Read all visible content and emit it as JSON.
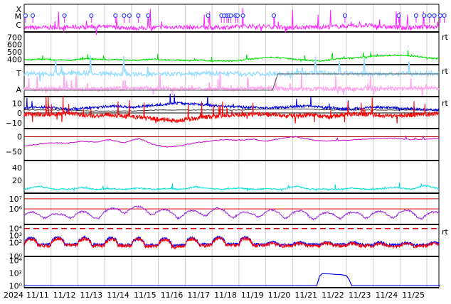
{
  "chart_data": [
    {
      "type": "line",
      "panel": "xray-flare-class",
      "y_tick_labels": [
        "X",
        "M",
        "C"
      ],
      "series": [
        {
          "color": "#ff22ff",
          "values": [
            2.8,
            2.9,
            3.1,
            2.7,
            3.0,
            2.8,
            3.2,
            2.9,
            3.0,
            3.4,
            2.8,
            3.1
          ]
        }
      ],
      "flare_marker_color": "#3344ff",
      "flare_marker_x": [
        11.05,
        11.32,
        12.5,
        13.5,
        14.4,
        14.72,
        14.92,
        15.25,
        15.62,
        17.85,
        18.35,
        18.45,
        18.55,
        18.62,
        18.7,
        18.88,
        18.95,
        19.15,
        20.3,
        22.95,
        24.95,
        25.6,
        25.9,
        26.1,
        26.28,
        26.5,
        26.65
      ]
    },
    {
      "type": "line",
      "panel": "solar-wind-speed",
      "y_tick_labels": [
        "700",
        "600",
        "500",
        "400"
      ],
      "ylim": [
        330,
        760
      ],
      "series": [
        {
          "color": "#00dd00",
          "values": [
            400,
            395,
            405,
            400,
            390,
            395,
            385,
            400,
            410,
            405,
            400,
            395,
            398,
            392,
            390,
            388,
            400,
            405,
            395,
            390,
            392,
            388,
            385,
            395,
            380,
            382,
            378,
            380,
            385,
            400,
            410,
            420,
            430,
            425,
            415,
            405,
            395,
            390,
            385,
            380,
            400,
            410,
            415,
            420,
            430,
            440,
            445,
            450,
            460,
            455,
            450,
            445,
            430,
            420,
            410
          ]
        }
      ]
    },
    {
      "type": "line",
      "panel": "imf-sector",
      "y_tick_labels": [
        "T",
        "A"
      ],
      "series": [
        {
          "color": "#ffaaee",
          "values": [
            0.25,
            0.24,
            0.27,
            0.25,
            0.26,
            0.24,
            0.25,
            0.27
          ]
        },
        {
          "color": "#99ddff",
          "values": [
            0.72,
            0.75,
            0.7,
            0.74,
            0.73,
            0.76,
            0.72,
            0.74
          ]
        }
      ]
    },
    {
      "type": "line",
      "panel": "imf-components",
      "y_tick_labels": [
        "10",
        "0",
        "−10"
      ],
      "ylim": [
        -16,
        16
      ],
      "series": [
        {
          "color": "#0000dd",
          "values": [
            5,
            6,
            4,
            5,
            7,
            6,
            8,
            10,
            9,
            7,
            6,
            5,
            6,
            7,
            5,
            4,
            6,
            5,
            4,
            3
          ]
        },
        {
          "color": "#ff0000",
          "values": [
            -1,
            -2,
            0,
            -3,
            -2,
            -4,
            -6,
            -8,
            -5,
            -3,
            -2,
            -1,
            -3,
            -2,
            -4,
            -1,
            -2,
            -3,
            -2,
            -1
          ]
        },
        {
          "color": "#000000",
          "values": [
            3,
            3,
            3,
            2,
            2,
            2,
            3,
            3,
            3,
            3,
            3,
            4,
            4,
            4,
            3,
            3,
            3,
            3,
            3,
            3
          ]
        }
      ]
    },
    {
      "type": "line",
      "panel": "dst-index",
      "y_tick_labels": [
        "0",
        "−50"
      ],
      "ylim": [
        -80,
        25
      ],
      "series": [
        {
          "color": "#cc00cc",
          "values": [
            -30,
            -25,
            -20,
            -22,
            -15,
            -18,
            -10,
            -20,
            -5,
            -25,
            -35,
            -30,
            -20,
            -15,
            -10,
            -12,
            -8,
            -15,
            -5,
            0,
            -10,
            -15,
            -12,
            -10,
            -8,
            -5,
            -5,
            -10,
            -8,
            -5
          ]
        }
      ]
    },
    {
      "type": "line",
      "panel": "ae-index",
      "y_tick_labels": [
        "40",
        "20"
      ],
      "ylim": [
        0,
        50
      ],
      "series": [
        {
          "color": "#00dddd",
          "values": [
            6,
            11,
            7,
            6,
            9,
            6,
            7,
            6,
            8,
            6,
            7,
            6,
            10,
            7,
            6,
            8,
            6,
            7,
            6,
            11,
            6,
            7,
            6,
            8,
            6,
            7,
            9,
            6,
            12,
            7
          ]
        }
      ]
    },
    {
      "type": "line",
      "panel": "electron-flux",
      "y_tick_labels": [
        "10⁷",
        "10⁶"
      ],
      "y_log": true,
      "ylim": [
        30000,
        30000000
      ],
      "thresholds": [
        10000000,
        1000000
      ],
      "series": [
        {
          "color": "#9922dd",
          "values": [
            200000,
            350000,
            150000,
            400000,
            180000,
            600000,
            1100000,
            800000,
            500000,
            300000,
            400000,
            700000,
            350000,
            250000,
            500000,
            300000,
            400000,
            200000,
            300000,
            250000,
            350000,
            300000,
            450000,
            250000,
            300000
          ]
        }
      ]
    },
    {
      "type": "line",
      "panel": "proton-flux",
      "y_tick_labels": [
        "10⁴",
        "10³",
        "10²",
        "10⁰"
      ],
      "y_log": true,
      "ylim": [
        1,
        30000
      ],
      "threshold": 10000,
      "series": [
        {
          "color": "#0000ff",
          "values": [
            300,
            400,
            350,
            300,
            250,
            400,
            380,
            300,
            350,
            320,
            280,
            300
          ]
        },
        {
          "color": "#ff0000",
          "values": [
            200,
            300,
            250,
            220,
            180,
            300,
            280,
            220,
            250,
            230,
            200,
            220
          ]
        }
      ]
    },
    {
      "type": "line",
      "panel": "high-energy-proton",
      "y_tick_labels": [
        "10⁴",
        "10²",
        "10⁰"
      ],
      "y_log": true,
      "ylim": [
        0.5,
        30000
      ],
      "series": [
        {
          "color": "#0000ee",
          "x": [
            11.0,
            21.9,
            22.0,
            22.1,
            22.4,
            22.6,
            22.8,
            23.0,
            23.1,
            23.2,
            26.5
          ],
          "values": [
            1,
            1,
            30,
            80,
            70,
            60,
            55,
            40,
            10,
            1,
            1
          ]
        }
      ]
    }
  ],
  "x_axis": {
    "year_label": "2024",
    "tick_labels": [
      "11/11",
      "11/12",
      "11/13",
      "11/14",
      "11/15",
      "11/16",
      "11/17",
      "11/18",
      "11/19",
      "11/20",
      "11/21",
      "11/22",
      "11/23",
      "11/24",
      "11/25"
    ]
  },
  "side_markers": [
    "rt",
    "rt",
    "rt",
    "rt",
    "rt"
  ]
}
